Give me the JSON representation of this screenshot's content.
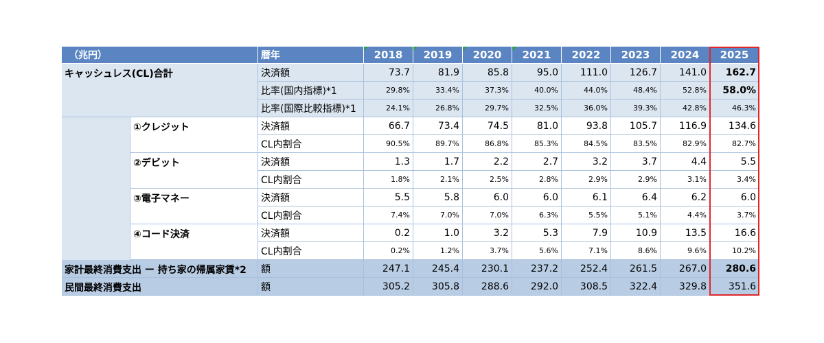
{
  "header": {
    "unit": "（兆円）",
    "year_label": "暦年",
    "years": [
      "2018",
      "2019",
      "2020",
      "2021",
      "2022",
      "2023",
      "2024",
      "2025"
    ]
  },
  "groups": [
    {
      "label": "キャッシュレス(CL)合計",
      "rows": [
        {
          "metric": "決済額",
          "values": [
            "73.7",
            "81.9",
            "85.8",
            "95.0",
            "111.0",
            "126.7",
            "141.0",
            "162.7"
          ]
        },
        {
          "metric": "比率(国内指標)*1",
          "values": [
            "29.8%",
            "33.4%",
            "37.3%",
            "40.0%",
            "44.0%",
            "48.4%",
            "52.8%",
            "58.0%"
          ]
        },
        {
          "metric": "比率(国際比較指標)*1",
          "values": [
            "24.1%",
            "26.8%",
            "29.7%",
            "32.5%",
            "36.0%",
            "39.3%",
            "42.8%",
            "46.3%"
          ]
        }
      ]
    },
    {
      "label": "①クレジット",
      "rows": [
        {
          "metric": "決済額",
          "values": [
            "66.7",
            "73.4",
            "74.5",
            "81.0",
            "93.8",
            "105.7",
            "116.9",
            "134.6"
          ]
        },
        {
          "metric": "CL内割合",
          "values": [
            "90.5%",
            "89.7%",
            "86.8%",
            "85.3%",
            "84.5%",
            "83.5%",
            "82.9%",
            "82.7%"
          ]
        }
      ]
    },
    {
      "label": "②デビット",
      "rows": [
        {
          "metric": "決済額",
          "values": [
            "1.3",
            "1.7",
            "2.2",
            "2.7",
            "3.2",
            "3.7",
            "4.4",
            "5.5"
          ]
        },
        {
          "metric": "CL内割合",
          "values": [
            "1.8%",
            "2.1%",
            "2.5%",
            "2.8%",
            "2.9%",
            "2.9%",
            "3.1%",
            "3.4%"
          ]
        }
      ]
    },
    {
      "label": "③電子マネー",
      "rows": [
        {
          "metric": "決済額",
          "values": [
            "5.5",
            "5.8",
            "6.0",
            "6.0",
            "6.1",
            "6.4",
            "6.2",
            "6.0"
          ]
        },
        {
          "metric": "CL内割合",
          "values": [
            "7.4%",
            "7.0%",
            "7.0%",
            "6.3%",
            "5.5%",
            "5.1%",
            "4.4%",
            "3.7%"
          ]
        }
      ]
    },
    {
      "label": "④コード決済",
      "rows": [
        {
          "metric": "決済額",
          "values": [
            "0.2",
            "1.0",
            "3.2",
            "5.3",
            "7.9",
            "10.9",
            "13.5",
            "16.6"
          ]
        },
        {
          "metric": "CL内割合",
          "values": [
            "0.2%",
            "1.2%",
            "3.7%",
            "5.6%",
            "7.1%",
            "8.6%",
            "9.6%",
            "10.2%"
          ]
        }
      ]
    },
    {
      "label": "家計最終消費支出 ー 持ち家の帰属家賃*2",
      "rows": [
        {
          "metric": "額",
          "values": [
            "247.1",
            "245.4",
            "230.1",
            "237.2",
            "252.4",
            "261.5",
            "267.0",
            "280.6"
          ]
        }
      ]
    },
    {
      "label": "民間最終消費支出",
      "rows": [
        {
          "metric": "額",
          "values": [
            "305.2",
            "305.8",
            "288.6",
            "292.0",
            "308.5",
            "322.4",
            "329.8",
            "351.6"
          ]
        }
      ]
    }
  ]
}
